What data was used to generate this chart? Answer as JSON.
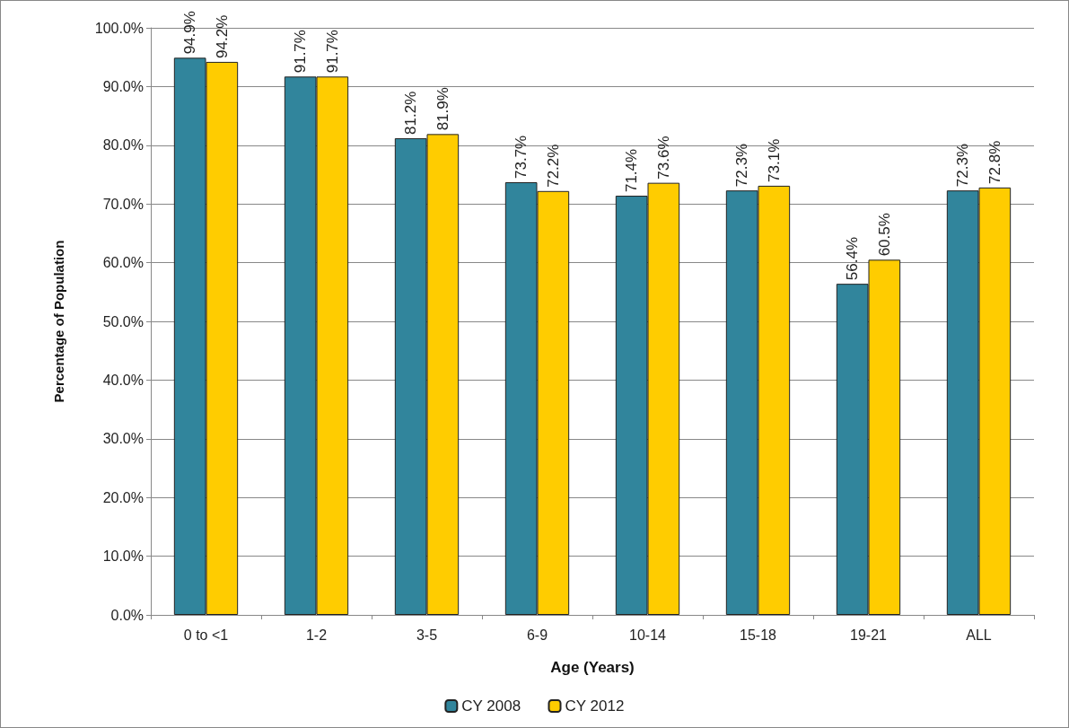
{
  "chart_data": {
    "type": "bar",
    "xlabel": "Age (Years)",
    "ylabel": "Percentage of Population",
    "categories": [
      "0 to <1",
      "1-2",
      "3-5",
      "6-9",
      "10-14",
      "15-18",
      "19-21",
      "ALL"
    ],
    "series": [
      {
        "name": "CY 2008",
        "color": "#31859c",
        "values": [
          94.9,
          91.7,
          81.2,
          73.7,
          71.4,
          72.3,
          56.4,
          72.3
        ],
        "value_labels": [
          "94.9%",
          "91.7%",
          "81.2%",
          "73.7%",
          "71.4%",
          "72.3%",
          "56.4%",
          "72.3%"
        ]
      },
      {
        "name": "CY 2012",
        "color": "#ffcc00",
        "values": [
          94.2,
          91.7,
          81.9,
          72.2,
          73.6,
          73.1,
          60.5,
          72.8
        ],
        "value_labels": [
          "94.2%",
          "91.7%",
          "81.9%",
          "72.2%",
          "73.6%",
          "73.1%",
          "60.5%",
          "72.8%"
        ]
      }
    ],
    "ylim": [
      0,
      100
    ],
    "yticks": [
      {
        "value": 0,
        "label": "0.0%"
      },
      {
        "value": 10,
        "label": "10.0%"
      },
      {
        "value": 20,
        "label": "20.0%"
      },
      {
        "value": 30,
        "label": "30.0%"
      },
      {
        "value": 40,
        "label": "40.0%"
      },
      {
        "value": 50,
        "label": "50.0%"
      },
      {
        "value": 60,
        "label": "60.0%"
      },
      {
        "value": 70,
        "label": "70.0%"
      },
      {
        "value": 80,
        "label": "80.0%"
      },
      {
        "value": 90,
        "label": "90.0%"
      },
      {
        "value": 100,
        "label": "100.0%"
      }
    ],
    "grid": "y",
    "legend": "bottom"
  }
}
